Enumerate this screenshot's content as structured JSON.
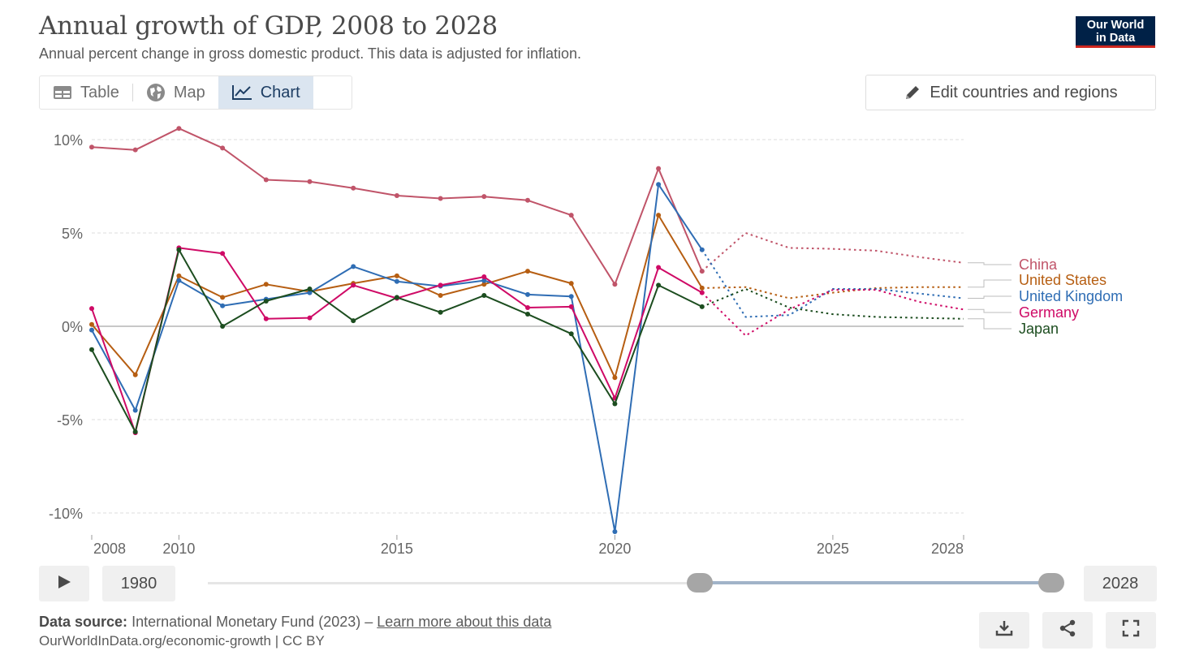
{
  "header": {
    "title": "Annual growth of GDP, 2008 to 2028",
    "subtitle": "Annual percent change in gross domestic product. This data is adjusted for inflation.",
    "logo_line1": "Our World",
    "logo_line2": "in Data"
  },
  "tabs": [
    {
      "label": "Table",
      "icon": "table-icon"
    },
    {
      "label": "Map",
      "icon": "globe-icon"
    },
    {
      "label": "Chart",
      "icon": "line-chart-icon",
      "active": true
    }
  ],
  "edit_button": {
    "label": "Edit countries and regions",
    "icon": "pencil-icon"
  },
  "timeline": {
    "start_label": "1980",
    "end_label": "2028",
    "range_start": 2008,
    "range_end": 2028
  },
  "footer": {
    "source_label": "Data source:",
    "source_text": "International Monetary Fund (2023) –",
    "source_link": "Learn more about this data",
    "credit": "OurWorldInData.org/economic-growth | CC BY"
  },
  "chart_data": {
    "type": "line",
    "title": "Annual growth of GDP, 2008 to 2028",
    "subtitle": "Annual percent change in gross domestic product. This data is adjusted for inflation.",
    "xlabel": "",
    "ylabel": "",
    "xlim": [
      2008,
      2028
    ],
    "ylim": [
      -11,
      10.5
    ],
    "x_ticks": [
      2008,
      2010,
      2015,
      2020,
      2025,
      2028
    ],
    "x_tick_labels": [
      "2008",
      "2010",
      "2015",
      "2020",
      "2025",
      "2028"
    ],
    "y_ticks": [
      10,
      5,
      0,
      -5,
      -10
    ],
    "y_tick_labels": [
      "10%",
      "5%",
      "0%",
      "-5%",
      "-10%"
    ],
    "grid": true,
    "legend": "right",
    "x": [
      2008,
      2009,
      2010,
      2011,
      2012,
      2013,
      2014,
      2015,
      2016,
      2017,
      2018,
      2019,
      2020,
      2021,
      2022,
      2023,
      2024,
      2025,
      2026,
      2027,
      2028
    ],
    "last_actual_year": 2022,
    "series": [
      {
        "name": "China",
        "color": "#c05469",
        "values": [
          9.6,
          9.45,
          10.6,
          9.55,
          7.85,
          7.75,
          7.4,
          7.0,
          6.85,
          6.95,
          6.75,
          5.95,
          2.25,
          8.45,
          2.95,
          5.0,
          4.2,
          4.15,
          4.05,
          3.7,
          3.4
        ]
      },
      {
        "name": "United States",
        "color": "#b65e12",
        "values": [
          0.1,
          -2.6,
          2.7,
          1.55,
          2.25,
          1.85,
          2.3,
          2.7,
          1.65,
          2.25,
          2.95,
          2.3,
          -2.75,
          5.95,
          2.05,
          2.1,
          1.5,
          1.8,
          2.05,
          2.1,
          2.1
        ]
      },
      {
        "name": "United Kingdom",
        "color": "#2f6db4",
        "values": [
          -0.2,
          -4.5,
          2.45,
          1.1,
          1.45,
          1.8,
          3.2,
          2.4,
          2.15,
          2.45,
          1.7,
          1.6,
          -11.0,
          7.6,
          4.1,
          0.5,
          0.6,
          2.0,
          2.0,
          1.75,
          1.5
        ]
      },
      {
        "name": "Germany",
        "color": "#cf0a66",
        "values": [
          0.95,
          -5.7,
          4.2,
          3.9,
          0.4,
          0.45,
          2.2,
          1.5,
          2.2,
          2.65,
          1.0,
          1.05,
          -3.85,
          3.15,
          1.8,
          -0.5,
          0.9,
          1.95,
          1.95,
          1.3,
          0.9
        ]
      },
      {
        "name": "Japan",
        "color": "#1c4d1f",
        "values": [
          -1.25,
          -5.65,
          4.1,
          0.0,
          1.35,
          2.0,
          0.3,
          1.55,
          0.75,
          1.65,
          0.65,
          -0.4,
          -4.15,
          2.2,
          1.05,
          2.0,
          1.0,
          0.65,
          0.5,
          0.45,
          0.4
        ]
      }
    ]
  }
}
